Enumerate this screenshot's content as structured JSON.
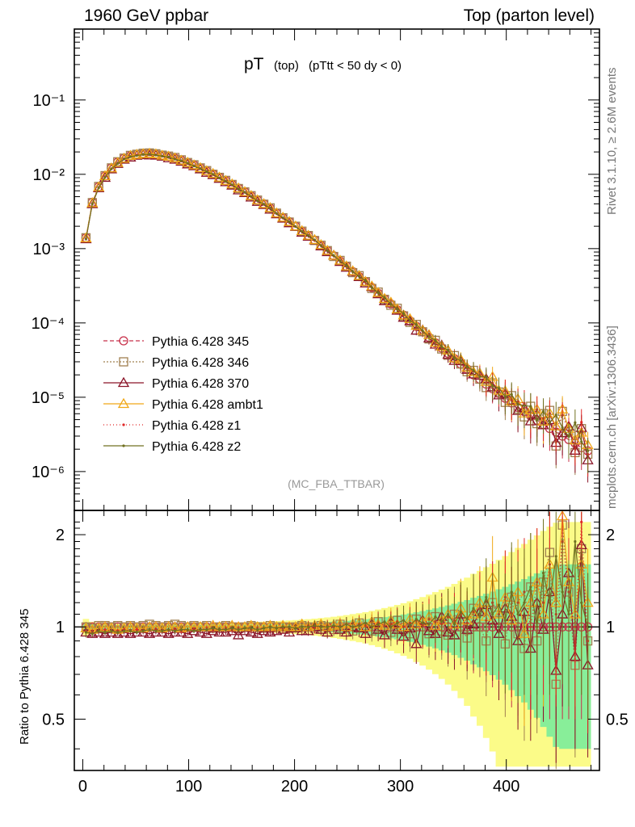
{
  "header": {
    "left": "1960 GeV ppbar",
    "right": "Top (parton level)",
    "side_top": "Rivet 3.1.10, ≥ 2.6M events",
    "side_bottom": "mcplots.cern.ch [arXiv:1306.3436]"
  },
  "chart_data": [
    {
      "type": "line",
      "title_main": "pT",
      "title_sub1": "(top)",
      "title_sub2": "(pTtt < 50 dy < 0)",
      "watermark": "(MC_FBA_TTBAR)",
      "xlim": [
        -8,
        488
      ],
      "ylim": [
        3e-07,
        0.9
      ],
      "yscale": "log",
      "ytick_labels": [
        "10⁻⁶",
        "10⁻⁵",
        "10⁻⁴",
        "10⁻³",
        "10⁻²",
        "10⁻¹"
      ],
      "legend_position": "lower-left",
      "reference": {
        "x": [
          3,
          9,
          15,
          21,
          27,
          33,
          39,
          45,
          51,
          57,
          63,
          69,
          75,
          81,
          87,
          93,
          99,
          105,
          111,
          117,
          123,
          129,
          135,
          141,
          147,
          153,
          159,
          165,
          171,
          177,
          183,
          189,
          195,
          201,
          207,
          213,
          219,
          225,
          231,
          237,
          243,
          249,
          255,
          261,
          267,
          273,
          279,
          285,
          291,
          297,
          303,
          309,
          315,
          321,
          327,
          333,
          339,
          345,
          351,
          357,
          363,
          369,
          375,
          381,
          387,
          393,
          399,
          405,
          411,
          417,
          423,
          429,
          435,
          441,
          447,
          453,
          459,
          465,
          471,
          477
        ],
        "y": [
          0.0014,
          0.0042,
          0.0068,
          0.0095,
          0.0122,
          0.0146,
          0.0165,
          0.0178,
          0.0186,
          0.019,
          0.019,
          0.0187,
          0.0181,
          0.0174,
          0.0165,
          0.0155,
          0.0144,
          0.0133,
          0.0122,
          0.0111,
          0.0101,
          0.0091,
          0.0082,
          0.0073,
          0.0065,
          0.0058,
          0.0051,
          0.0045,
          0.004,
          0.0035,
          0.003,
          0.0026,
          0.0023,
          0.002,
          0.0017,
          0.0015,
          0.0013,
          0.0011,
          0.00094,
          0.0008,
          0.00068,
          0.00058,
          0.00049,
          0.00042,
          0.00036,
          0.0003,
          0.00025,
          0.00021,
          0.00018,
          0.00015,
          0.000127,
          0.000107,
          9e-05,
          7.6e-05,
          6.4e-05,
          5.4e-05,
          4.6e-05,
          3.9e-05,
          3.3e-05,
          2.8e-05,
          2.4e-05,
          2e-05,
          1.75e-05,
          1.5e-05,
          1.3e-05,
          1.12e-05,
          9.7e-06,
          8.4e-06,
          7.3e-06,
          6.4e-06,
          5.6e-06,
          4.9e-06,
          4.3e-06,
          3.8e-06,
          3.4e-06,
          3e-06,
          2.7e-06,
          2.4e-06,
          2.1e-06,
          1.9e-06
        ]
      },
      "series": [
        {
          "name": "Pythia 6.428 345",
          "color": "#c8304a",
          "dash": "5,3",
          "marker": "circle",
          "ratio": [
            1.0,
            1.0,
            1.0,
            1.0,
            1.0,
            1.0,
            1.0,
            1.0,
            1.0,
            1.0,
            1.0,
            1.0,
            1.0,
            1.0,
            1.0,
            1.0,
            1.0,
            1.0,
            1.0,
            1.0,
            1.0,
            1.0,
            1.0,
            1.0,
            1.0,
            1.0,
            1.0,
            1.0,
            1.0,
            1.0,
            1.0,
            1.0,
            1.0,
            1.0,
            1.0,
            1.0,
            1.0,
            1.0,
            1.0,
            1.0,
            1.0,
            1.0,
            1.0,
            1.0,
            1.0,
            1.0,
            1.0,
            1.0,
            1.0,
            1.0,
            1.0,
            1.0,
            1.0,
            1.0,
            1.0,
            1.0,
            1.0,
            1.0,
            1.0,
            1.0,
            1.0,
            1.0,
            1.0,
            1.0,
            1.0,
            1.0,
            1.0,
            1.0,
            1.0,
            1.0,
            1.0,
            1.0,
            1.0,
            1.0,
            1.0,
            1.0,
            1.0,
            1.0,
            1.0,
            1.0
          ]
        },
        {
          "name": "Pythia 6.428 346",
          "color": "#a08050",
          "dash": "2,2",
          "marker": "square",
          "ratio": [
            1.0,
            0.99,
            1.01,
            1.01,
            1.0,
            1.01,
            1.0,
            1.01,
            1.0,
            1.01,
            1.02,
            1.01,
            1.0,
            1.01,
            1.02,
            1.01,
            1.0,
            1.01,
            1.0,
            1.01,
            0.99,
            1.0,
            1.01,
            1.0,
            0.99,
            1.0,
            1.01,
            1.0,
            0.99,
            1.01,
            1.0,
            1.0,
            0.99,
            1.0,
            1.01,
            1.0,
            0.99,
            1.01,
            1.0,
            0.98,
            1.02,
            1.0,
            0.97,
            1.03,
            1.0,
            0.97,
            1.04,
            0.99,
            0.96,
            1.05,
            0.98,
            0.95,
            1.06,
            1.0,
            0.95,
            1.08,
            0.97,
            0.94,
            1.1,
            1.0,
            0.92,
            1.15,
            1.0,
            0.9,
            1.2,
            1.05,
            0.88,
            1.25,
            0.95,
            0.85,
            1.35,
            0.9,
            1.4,
            1.75,
            0.65,
            2.15,
            1.3,
            0.75,
            1.8,
            0.9
          ]
        },
        {
          "name": "Pythia 6.428 370",
          "color": "#8a1428",
          "dash": "",
          "marker": "triangle",
          "ratio": [
            0.96,
            0.95,
            0.96,
            0.95,
            0.96,
            0.95,
            0.96,
            0.95,
            0.96,
            0.96,
            0.95,
            0.96,
            0.96,
            0.95,
            0.96,
            0.96,
            0.95,
            0.97,
            0.96,
            0.95,
            0.97,
            0.96,
            0.96,
            0.97,
            0.94,
            0.97,
            0.96,
            0.95,
            0.97,
            0.96,
            0.97,
            0.98,
            0.96,
            0.99,
            0.97,
            0.97,
            1.0,
            0.98,
            0.96,
            1.01,
            0.98,
            0.96,
            1.0,
            0.99,
            0.95,
            1.02,
            0.98,
            0.94,
            1.03,
            0.98,
            0.93,
            0.99,
            0.88,
            1.05,
            0.97,
            0.95,
            1.08,
            0.96,
            0.94,
            1.1,
            0.98,
            1.02,
            1.12,
            1.18,
            1.05,
            0.95,
            1.15,
            1.08,
            0.9,
            1.12,
            0.85,
            1.2,
            0.98,
            1.3,
            0.72,
            1.1,
            1.5,
            0.8,
            1.85,
            0.75
          ]
        },
        {
          "name": "Pythia 6.428 ambt1",
          "color": "#f0a818",
          "dash": "",
          "marker": "triangle",
          "ratio": [
            0.99,
            0.98,
            0.99,
            1.0,
            0.99,
            0.98,
            0.99,
            1.0,
            0.99,
            0.99,
            1.0,
            1.0,
            0.99,
            1.0,
            1.0,
            0.99,
            1.0,
            1.0,
            1.0,
            1.0,
            1.01,
            1.0,
            1.0,
            1.01,
            1.0,
            1.0,
            1.01,
            1.0,
            1.0,
            1.01,
            1.0,
            1.01,
            1.0,
            1.0,
            1.02,
            1.0,
            1.01,
            1.02,
            1.0,
            1.01,
            1.02,
            1.0,
            1.02,
            1.03,
            1.0,
            1.04,
            1.02,
            1.01,
            1.05,
            1.02,
            1.0,
            1.06,
            1.02,
            1.04,
            1.08,
            1.01,
            1.05,
            1.1,
            1.02,
            1.15,
            1.05,
            1.1,
            1.2,
            1.08,
            1.45,
            1.1,
            1.25,
            1.05,
            1.3,
            0.95,
            1.2,
            1.4,
            1.1,
            1.6,
            1.2,
            2.3,
            1.4,
            1.1,
            1.6,
            1.2
          ]
        },
        {
          "name": "Pythia 6.428 z1",
          "color": "#e02828",
          "dash": "1,3",
          "marker": "dot",
          "ratio": [
            0.97,
            0.96,
            0.97,
            0.98,
            0.97,
            0.97,
            0.98,
            0.97,
            0.98,
            0.97,
            0.98,
            0.98,
            0.97,
            0.98,
            0.98,
            0.97,
            0.98,
            0.98,
            0.98,
            0.99,
            0.98,
            0.98,
            0.99,
            0.98,
            0.99,
            0.99,
            0.98,
            0.99,
            0.99,
            1.0,
            0.99,
            0.99,
            1.0,
            0.99,
            1.0,
            1.01,
            0.99,
            1.0,
            1.01,
            1.0,
            1.01,
            1.02,
            1.0,
            1.02,
            1.01,
            1.0,
            1.03,
            1.01,
            1.02,
            1.04,
            1.0,
            1.03,
            1.05,
            1.01,
            1.06,
            1.04,
            1.02,
            1.08,
            1.05,
            1.1,
            1.03,
            1.12,
            1.15,
            1.05,
            1.2,
            1.1,
            1.25,
            1.08,
            1.2,
            1.3,
            1.0,
            1.4,
            1.2,
            1.6,
            1.1,
            1.9,
            1.3,
            1.0,
            2.2,
            0.9
          ]
        },
        {
          "name": "Pythia 6.428 z2",
          "color": "#707020",
          "dash": "",
          "marker": "dot",
          "ratio": [
            0.96,
            0.95,
            0.97,
            0.96,
            0.97,
            0.96,
            0.97,
            0.97,
            0.96,
            0.97,
            0.98,
            0.97,
            0.97,
            0.98,
            0.97,
            0.98,
            0.98,
            0.97,
            0.98,
            0.98,
            0.99,
            0.98,
            0.98,
            0.99,
            0.98,
            0.99,
            0.99,
            0.98,
            0.99,
            1.0,
            0.99,
            1.0,
            1.0,
            0.99,
            1.0,
            1.0,
            1.01,
            1.0,
            1.0,
            1.01,
            1.0,
            1.02,
            1.0,
            1.01,
            1.03,
            1.0,
            1.02,
            1.04,
            1.0,
            1.03,
            1.05,
            1.01,
            1.06,
            1.03,
            1.02,
            1.08,
            1.04,
            1.1,
            1.02,
            1.12,
            1.06,
            1.15,
            1.08,
            1.25,
            1.1,
            1.18,
            1.05,
            1.3,
            1.1,
            1.2,
            1.35,
            1.0,
            1.5,
            1.2,
            1.7,
            1.3,
            1.1,
            1.9,
            1.2,
            1.0
          ]
        }
      ]
    },
    {
      "type": "line",
      "ylabel": "Ratio to Pythia 6.428 345",
      "xlim": [
        -8,
        488
      ],
      "ylim": [
        0.34,
        2.4
      ],
      "yscale": "log",
      "xtick_labels": [
        "0",
        "100",
        "200",
        "300",
        "400"
      ],
      "ytick_labels": [
        "0.5",
        "1",
        "2"
      ],
      "band_colors": [
        "#88ee99",
        "#fbfb88"
      ]
    }
  ]
}
